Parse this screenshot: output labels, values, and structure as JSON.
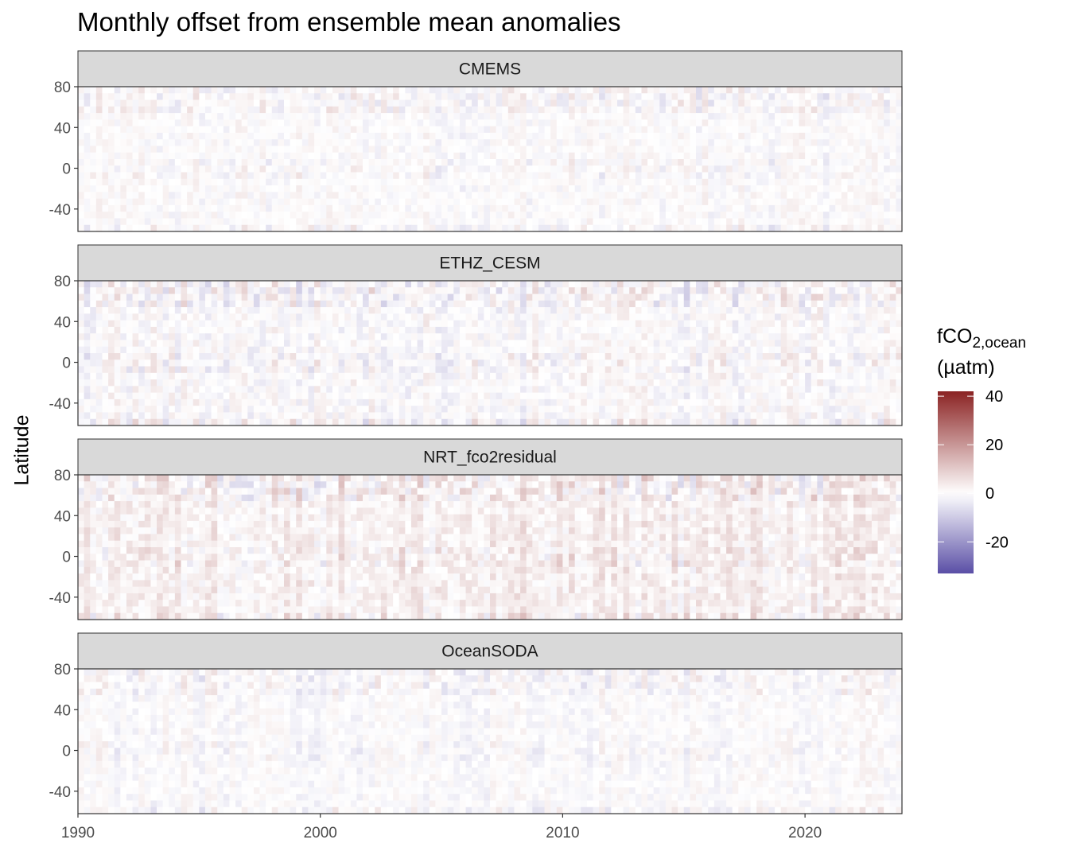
{
  "chart_data": {
    "type": "heatmap",
    "title": "Monthly offset from ensemble mean anomalies",
    "xlabel": "",
    "ylabel": "Latitude",
    "panels": [
      "CMEMS",
      "ETHZ_CESM",
      "NRT_fco2residual",
      "OceanSODA"
    ],
    "x_range": [
      1990,
      2024
    ],
    "y_range": [
      -62,
      80
    ],
    "x_ticks": [
      "1990",
      "2000",
      "2010",
      "2020"
    ],
    "y_ticks": [
      "80",
      "40",
      "0",
      "-40"
    ],
    "y_tick_values": [
      80,
      40,
      0,
      -40
    ],
    "x_tick_values": [
      1990,
      2000,
      2010,
      2020
    ],
    "legend": {
      "title_main": "fCO",
      "title_sub": "2,ocean",
      "title_unit": "(µatm)",
      "min": -33,
      "max": 42,
      "ticks": [
        "40",
        "20",
        "0",
        "-20"
      ],
      "tick_values": [
        40,
        20,
        0,
        -20
      ],
      "low_color": "#5a4fa6",
      "mid_color": "#ffffff",
      "high_color": "#8b2323",
      "placement": "right"
    },
    "grid": false
  }
}
